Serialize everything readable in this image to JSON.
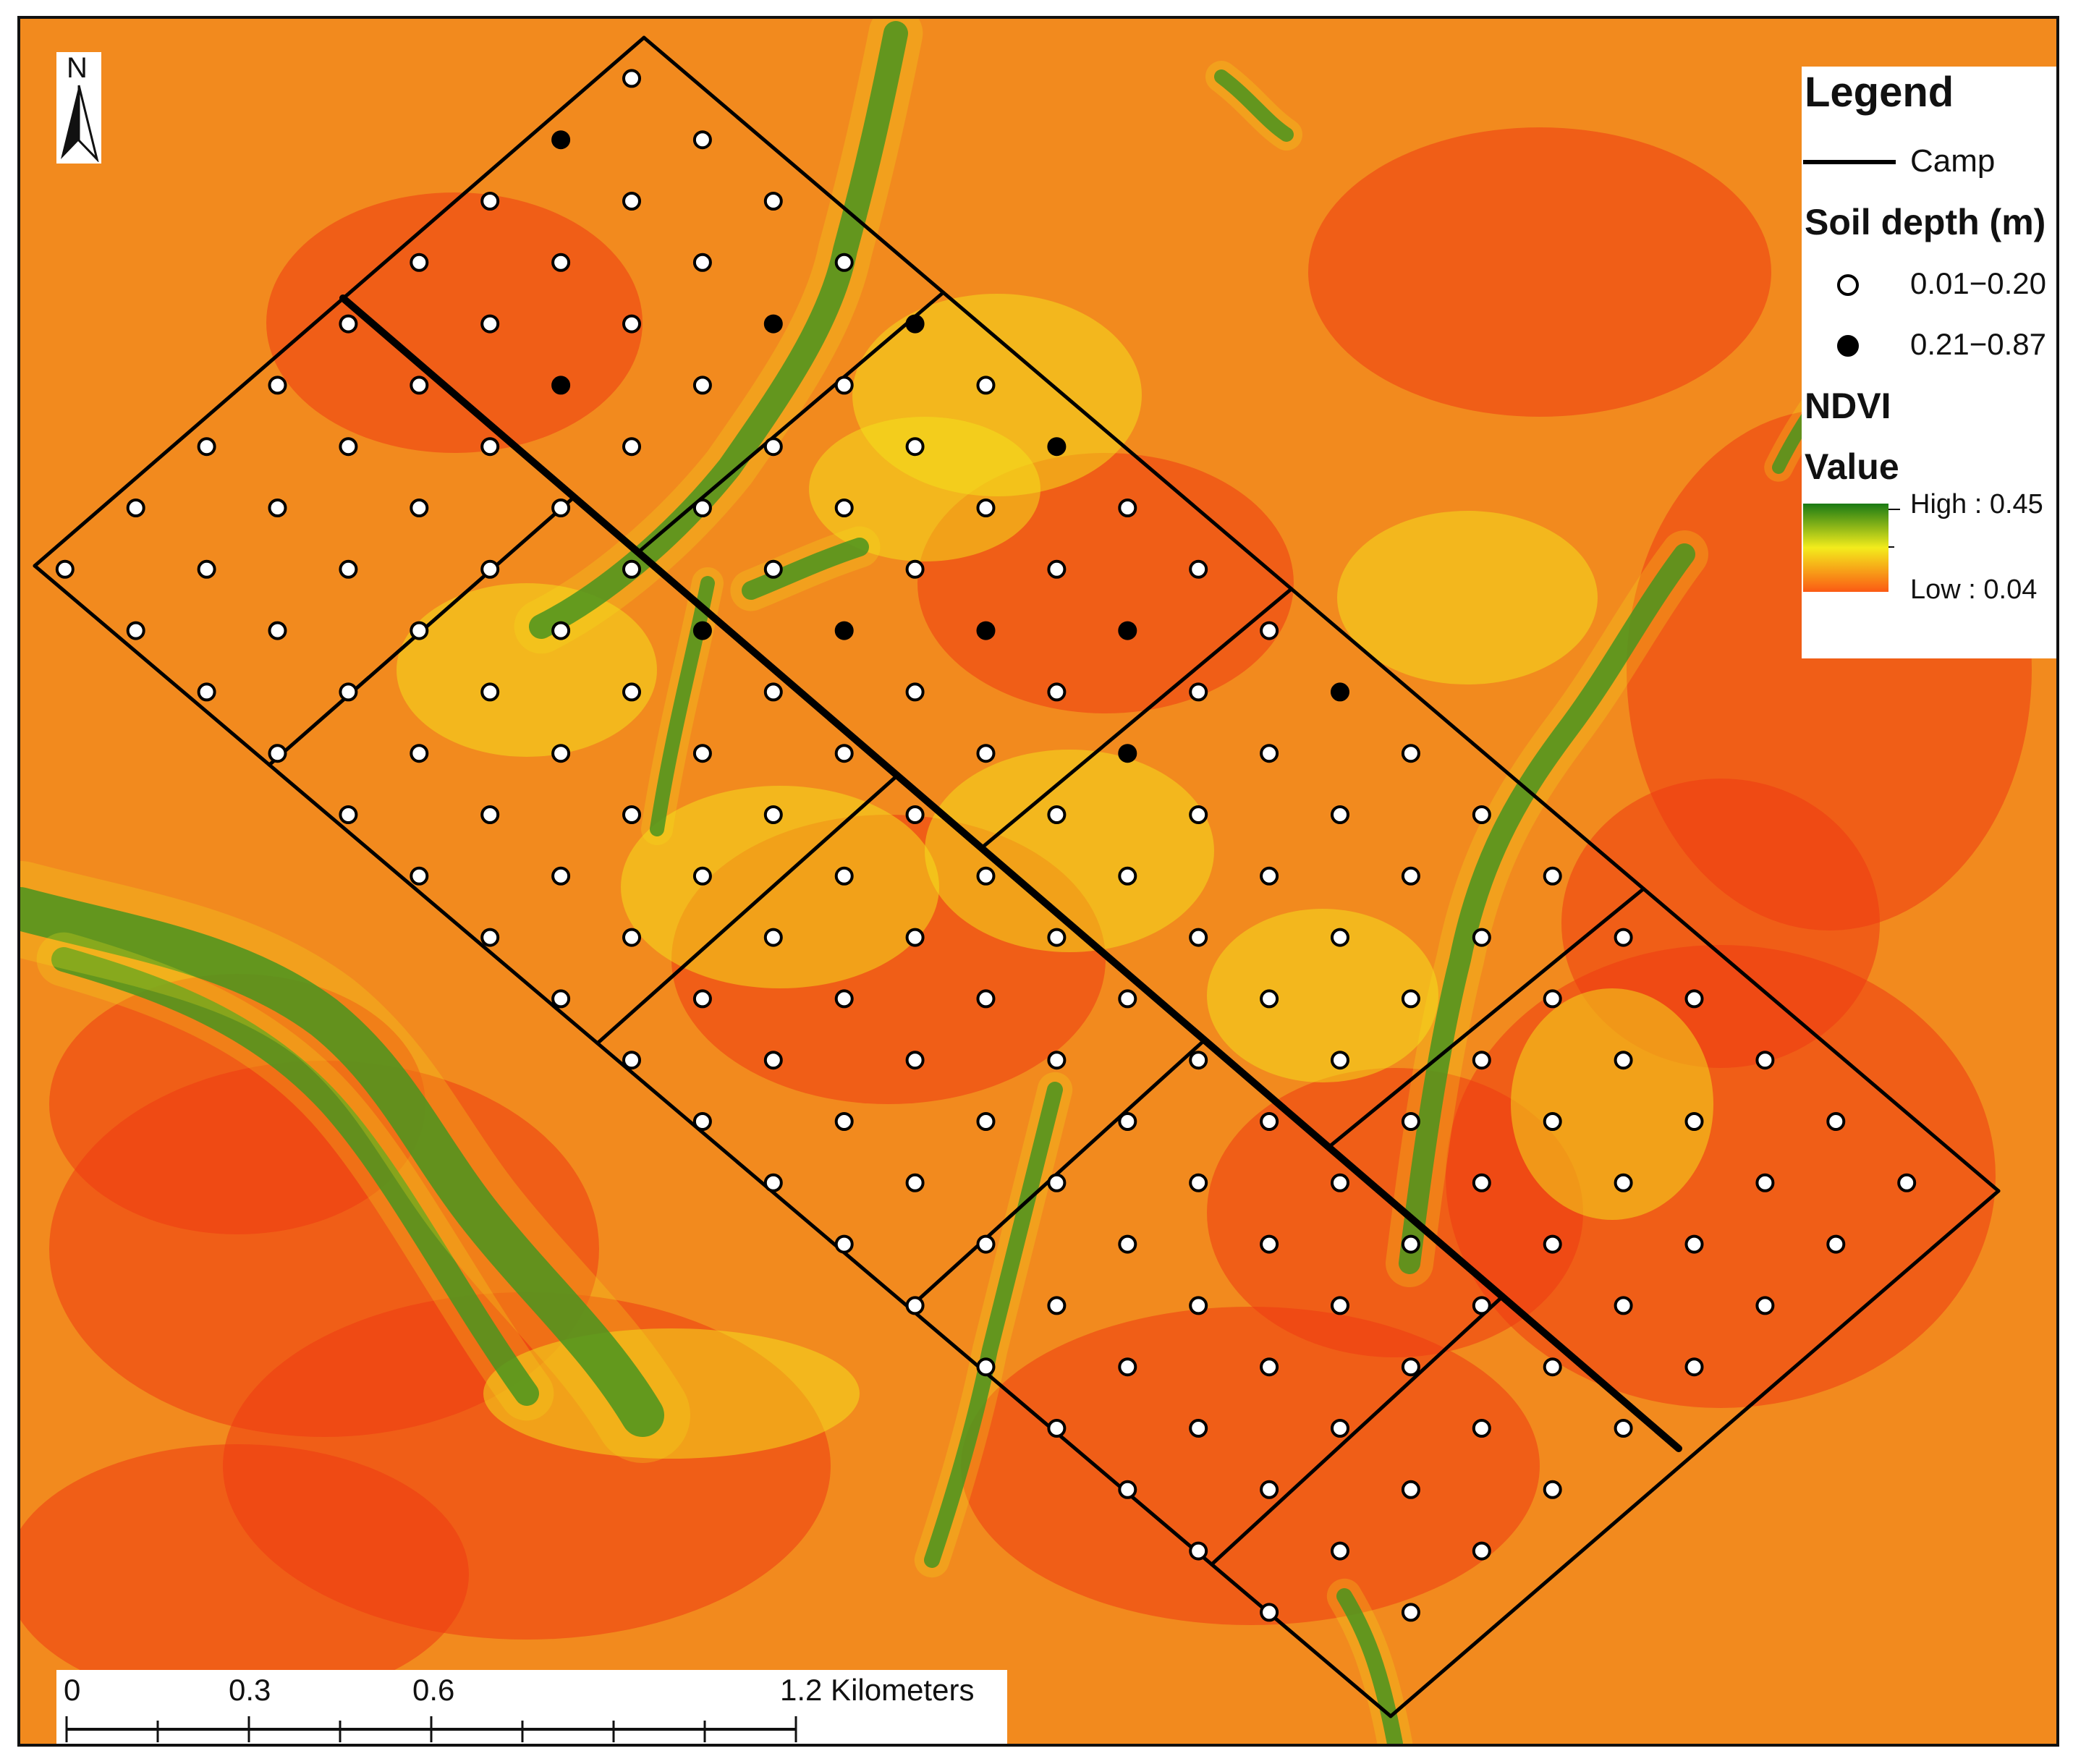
{
  "north_arrow": {
    "label": "N",
    "icon": "north-arrow-icon"
  },
  "legend": {
    "title": "Legend",
    "camp_label": "Camp",
    "soil_title": "Soil depth (m)",
    "soil_classes": [
      {
        "label": "0.01−0.20",
        "symbol": "open-circle",
        "fill": "#ffffff"
      },
      {
        "label": "0.21−0.87",
        "symbol": "filled-circle",
        "fill": "#000000"
      }
    ],
    "ndvi_title": "NDVI",
    "value_title": "Value",
    "ramp_high": "High : 0.45",
    "ramp_low": "Low : 0.04",
    "ramp_colors": [
      "#1a7a14",
      "#f3ec1c",
      "#fb5a14"
    ]
  },
  "scale_bar": {
    "labels": [
      "0",
      "0.3",
      "0.6",
      "1.2 Kilometers"
    ],
    "ticks_km": [
      0,
      0.15,
      0.3,
      0.45,
      0.6,
      0.75,
      0.9,
      1.05,
      1.2
    ]
  },
  "colors": {
    "background_ndvi": "#f28a1e",
    "low_ndvi": "#ee3a12",
    "mid_ndvi": "#f3e31c",
    "high_ndvi": "#127a20",
    "camp_line": "#000000"
  }
}
